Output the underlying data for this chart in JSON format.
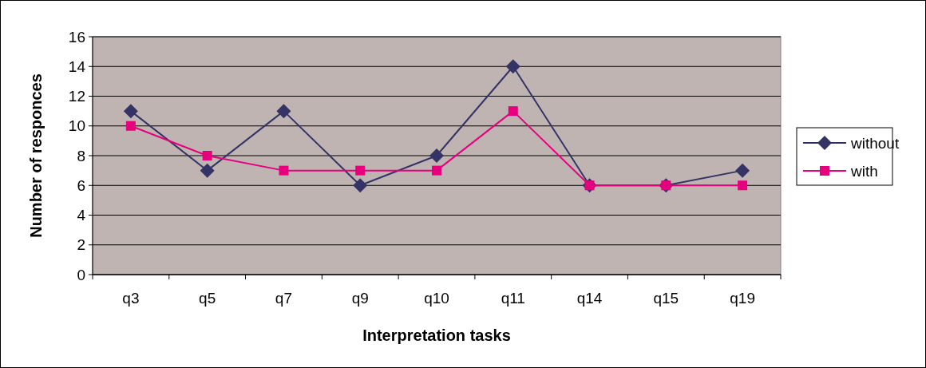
{
  "chart_data": {
    "type": "line",
    "xlabel": "Interpretation tasks",
    "ylabel": "Number of responces",
    "categories": [
      "q3",
      "q5",
      "q7",
      "q9",
      "q10",
      "q11",
      "q14",
      "q15",
      "q19"
    ],
    "series": [
      {
        "name": "without",
        "color": "#333366",
        "marker": "diamond",
        "values": [
          11,
          7,
          11,
          6,
          8,
          14,
          6,
          6,
          7
        ]
      },
      {
        "name": "with",
        "color": "#e6007e",
        "marker": "square",
        "values": [
          10,
          8,
          7,
          7,
          7,
          11,
          6,
          6,
          6
        ]
      }
    ],
    "ylim": [
      0,
      16
    ],
    "yticks": [
      0,
      2,
      4,
      6,
      8,
      10,
      12,
      14,
      16
    ],
    "grid": "y",
    "legend": "right",
    "line_style": "solid"
  }
}
